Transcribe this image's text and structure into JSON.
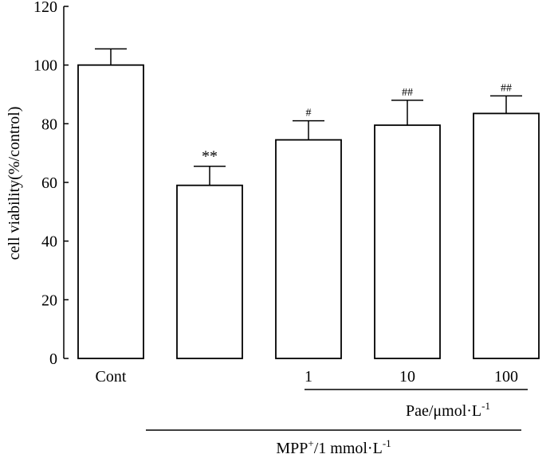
{
  "chart_data": {
    "type": "bar",
    "title": "",
    "xlabel": "",
    "ylabel": "cell viability(%/control)",
    "ylim": [
      0,
      120
    ],
    "yticks": [
      0,
      20,
      40,
      60,
      80,
      100,
      120
    ],
    "grid": false,
    "categories": [
      "Cont",
      "",
      "1",
      "10",
      "100"
    ],
    "values": [
      100,
      59,
      74.5,
      79.5,
      83.5
    ],
    "errors": [
      5.5,
      6.5,
      6.5,
      8.5,
      6
    ],
    "annotations": [
      "",
      "**",
      "#",
      "##",
      "##"
    ],
    "groups": [
      {
        "name": "Pae",
        "unit": "μmol·L",
        "unit_sup": "-1",
        "bars": [
          2,
          3,
          4
        ]
      },
      {
        "name": "MPP",
        "name_sup": "+",
        "dose": "/1 mmol·L",
        "dose_sup": "-1",
        "bars": [
          1,
          2,
          3,
          4
        ]
      }
    ]
  }
}
